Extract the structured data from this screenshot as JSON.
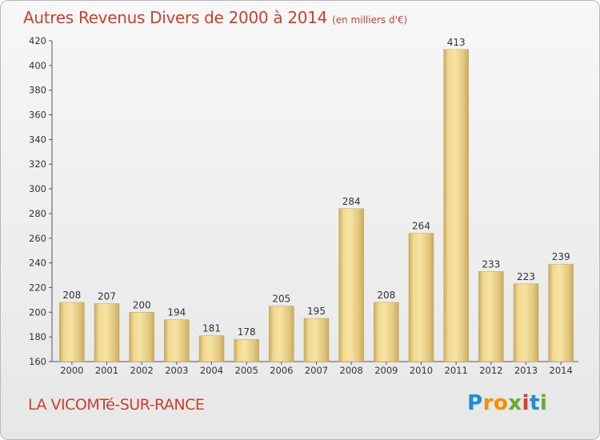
{
  "title": "Autres Revenus Divers de 2000 à 2014",
  "subtitle": "(en milliers d'€)",
  "commune": "LA VICOMTé-SUR-RANCE",
  "logo": {
    "letters": [
      "P",
      "r",
      "o",
      "x",
      "i",
      "t",
      "i"
    ],
    "colors": [
      "#1e8fd6",
      "#f39200",
      "#f39200",
      "#6aa832",
      "#e03a2b",
      "#1e8fd6",
      "#6aa832"
    ]
  },
  "colors": {
    "title": "#c8432e",
    "bar_light": "#f7e3a3",
    "bar_dark": "#c9aa62"
  },
  "chart_data": {
    "type": "bar",
    "categories": [
      "2000",
      "2001",
      "2002",
      "2003",
      "2004",
      "2005",
      "2006",
      "2007",
      "2008",
      "2009",
      "2010",
      "2011",
      "2012",
      "2013",
      "2014"
    ],
    "values": [
      208,
      207,
      200,
      194,
      181,
      178,
      205,
      195,
      284,
      208,
      264,
      413,
      233,
      223,
      239
    ],
    "ylim": [
      160,
      420
    ],
    "yticks": [
      160,
      180,
      200,
      220,
      240,
      260,
      280,
      300,
      320,
      340,
      360,
      380,
      400,
      420
    ],
    "grid": false,
    "legend": "none"
  }
}
